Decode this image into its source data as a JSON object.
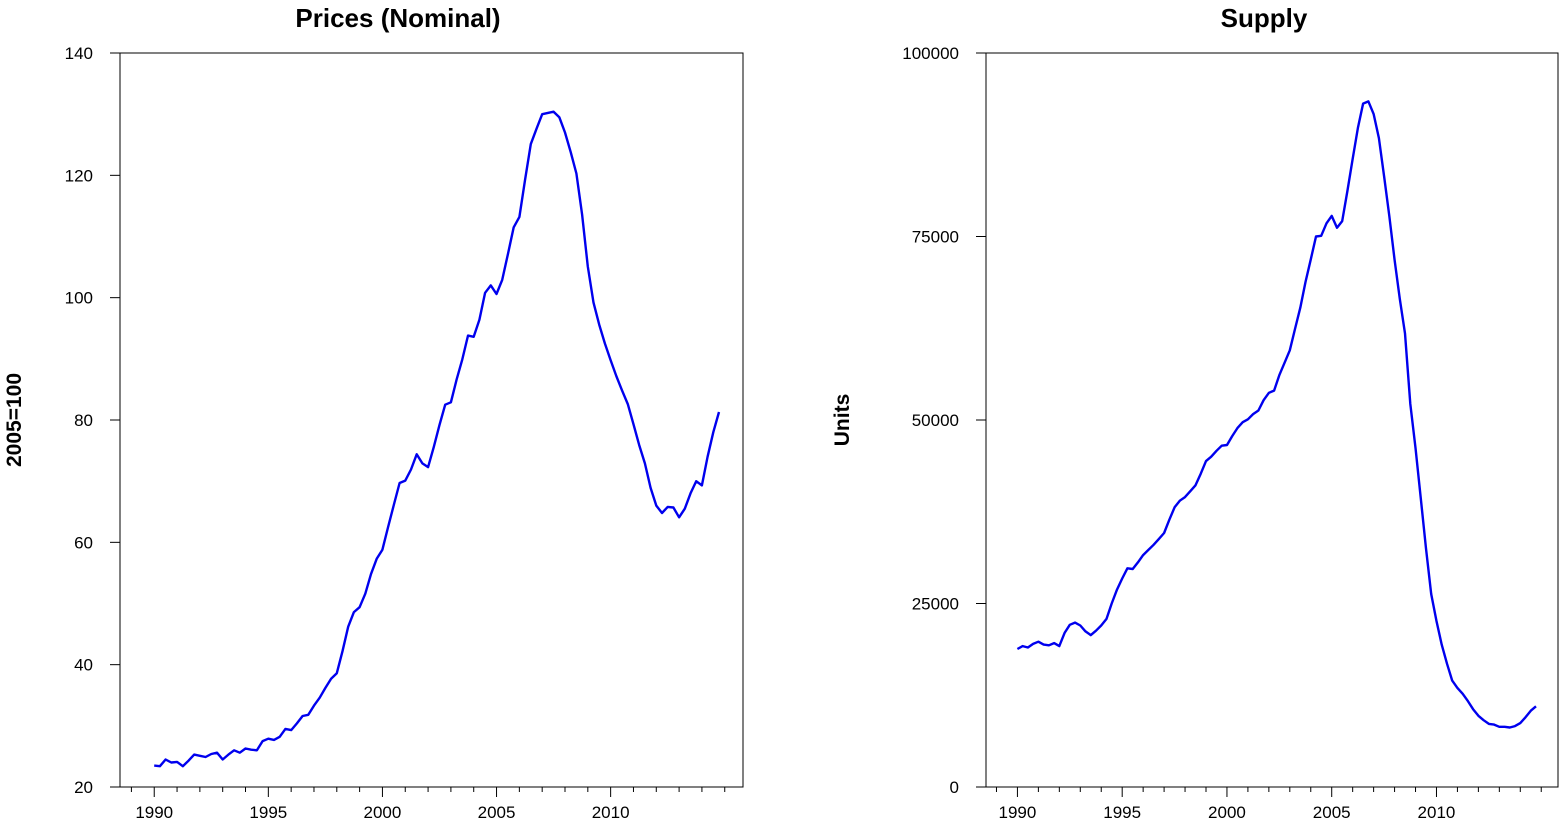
{
  "colors": {
    "line": "#0000ee",
    "axis": "#000000",
    "background": "#ffffff"
  },
  "chart_data": [
    {
      "type": "line",
      "title": "Prices (Nominal)",
      "xlabel": "",
      "ylabel": "2005=100",
      "xlim": [
        1988.5,
        2015.8
      ],
      "ylim": [
        20,
        140
      ],
      "xticks": [
        1990,
        1995,
        2000,
        2005,
        2010
      ],
      "xticks_minor_step": 1,
      "yticks": [
        20,
        40,
        60,
        80,
        100,
        120,
        140
      ],
      "grid": false,
      "legend": "none",
      "series": [
        {
          "x": [
            1990.0,
            1990.25,
            1990.5,
            1990.75,
            1991.0,
            1991.25,
            1991.5,
            1991.75,
            1992.0,
            1992.25,
            1992.5,
            1992.75,
            1993.0,
            1993.25,
            1993.5,
            1993.75,
            1994.0,
            1994.25,
            1994.5,
            1994.75,
            1995.0,
            1995.25,
            1995.5,
            1995.75,
            1996.0,
            1996.25,
            1996.5,
            1996.75,
            1997.0,
            1997.25,
            1997.5,
            1997.75,
            1998.0,
            1998.25,
            1998.5,
            1998.75,
            1999.0,
            1999.25,
            1999.5,
            1999.75,
            2000.0,
            2000.25,
            2000.5,
            2000.75,
            2001.0,
            2001.25,
            2001.5,
            2001.75,
            2002.0,
            2002.25,
            2002.5,
            2002.75,
            2003.0,
            2003.25,
            2003.5,
            2003.75,
            2004.0,
            2004.25,
            2004.5,
            2004.75,
            2005.0,
            2005.25,
            2005.5,
            2005.75,
            2006.0,
            2006.25,
            2006.5,
            2006.75,
            2007.0,
            2007.25,
            2007.5,
            2007.75,
            2008.0,
            2008.25,
            2008.5,
            2008.75,
            2009.0,
            2009.25,
            2009.5,
            2009.75,
            2010.0,
            2010.25,
            2010.5,
            2010.75,
            2011.0,
            2011.25,
            2011.5,
            2011.75,
            2012.0,
            2012.25,
            2012.5,
            2012.75,
            2013.0,
            2013.25,
            2013.5,
            2013.75,
            2014.0,
            2014.25,
            2014.5,
            2014.75
          ],
          "y": [
            23.5,
            23.4,
            24.5,
            24.0,
            24.1,
            23.4,
            24.3,
            25.3,
            25.1,
            24.9,
            25.4,
            25.6,
            24.5,
            25.3,
            26.0,
            25.6,
            26.3,
            26.1,
            26.0,
            27.5,
            27.9,
            27.7,
            28.2,
            29.5,
            29.3,
            30.4,
            31.6,
            31.8,
            33.3,
            34.6,
            36.2,
            37.7,
            38.6,
            42.2,
            46.2,
            48.6,
            49.4,
            51.6,
            54.8,
            57.3,
            58.8,
            62.5,
            66.1,
            69.7,
            70.1,
            71.9,
            74.4,
            72.9,
            72.3,
            75.6,
            79.2,
            82.5,
            82.9,
            86.6,
            89.9,
            93.8,
            93.6,
            96.4,
            100.8,
            102.0,
            100.6,
            102.9,
            107.1,
            111.5,
            113.2,
            119.3,
            125.1,
            127.6,
            130.0,
            130.2,
            130.4,
            129.5,
            127.0,
            123.8,
            120.3,
            113.6,
            105.1,
            99.2,
            95.6,
            92.5,
            89.8,
            87.2,
            84.8,
            82.6,
            79.3,
            75.9,
            72.9,
            68.9,
            66.0,
            64.8,
            65.8,
            65.7,
            64.1,
            65.5,
            68.0,
            70.0,
            69.3,
            74.0,
            78.0,
            81.3
          ]
        }
      ]
    },
    {
      "type": "line",
      "title": "Supply",
      "xlabel": "",
      "ylabel": "Units",
      "xlim": [
        1988.5,
        2015.8
      ],
      "ylim": [
        0,
        100000
      ],
      "xticks": [
        1990,
        1995,
        2000,
        2005,
        2010
      ],
      "xticks_minor_step": 1,
      "yticks": [
        0,
        25000,
        50000,
        75000,
        100000
      ],
      "grid": false,
      "legend": "none",
      "series": [
        {
          "x": [
            1990.0,
            1990.25,
            1990.5,
            1990.75,
            1991.0,
            1991.25,
            1991.5,
            1991.75,
            1992.0,
            1992.25,
            1992.5,
            1992.75,
            1993.0,
            1993.25,
            1993.5,
            1993.75,
            1994.0,
            1994.25,
            1994.5,
            1994.75,
            1995.0,
            1995.25,
            1995.5,
            1995.75,
            1996.0,
            1996.25,
            1996.5,
            1996.75,
            1997.0,
            1997.25,
            1997.5,
            1997.75,
            1998.0,
            1998.25,
            1998.5,
            1998.75,
            1999.0,
            1999.25,
            1999.5,
            1999.75,
            2000.0,
            2000.25,
            2000.5,
            2000.75,
            2001.0,
            2001.25,
            2001.5,
            2001.75,
            2002.0,
            2002.25,
            2002.5,
            2002.75,
            2003.0,
            2003.25,
            2003.5,
            2003.75,
            2004.0,
            2004.25,
            2004.5,
            2004.75,
            2005.0,
            2005.25,
            2005.5,
            2005.75,
            2006.0,
            2006.25,
            2006.5,
            2006.75,
            2007.0,
            2007.25,
            2007.5,
            2007.75,
            2008.0,
            2008.25,
            2008.5,
            2008.75,
            2009.0,
            2009.25,
            2009.5,
            2009.75,
            2010.0,
            2010.25,
            2010.5,
            2010.75,
            2011.0,
            2011.25,
            2011.5,
            2011.75,
            2012.0,
            2012.25,
            2012.5,
            2012.75,
            2013.0,
            2013.25,
            2013.5,
            2013.75,
            2014.0,
            2014.25,
            2014.5,
            2014.75
          ],
          "y": [
            18800,
            19200,
            19000,
            19500,
            19800,
            19400,
            19300,
            19600,
            19200,
            21000,
            22100,
            22400,
            22000,
            21200,
            20700,
            21300,
            22000,
            22900,
            25000,
            26900,
            28400,
            29800,
            29700,
            30600,
            31600,
            32300,
            33000,
            33800,
            34600,
            36400,
            38100,
            39000,
            39500,
            40300,
            41100,
            42700,
            44400,
            45000,
            45800,
            46500,
            46600,
            47800,
            48900,
            49700,
            50100,
            50800,
            51300,
            52700,
            53700,
            54000,
            56100,
            57800,
            59500,
            62400,
            65300,
            68800,
            71900,
            75000,
            75100,
            76800,
            77800,
            76200,
            77100,
            81200,
            85600,
            89800,
            93100,
            93400,
            91700,
            88400,
            83200,
            77800,
            71800,
            66500,
            61800,
            52200,
            46200,
            39300,
            32500,
            26300,
            22600,
            19400,
            16800,
            14500,
            13500,
            12700,
            11700,
            10600,
            9700,
            9100,
            8600,
            8500,
            8200,
            8200,
            8100,
            8300,
            8700,
            9500,
            10400,
            11000
          ]
        }
      ]
    }
  ]
}
